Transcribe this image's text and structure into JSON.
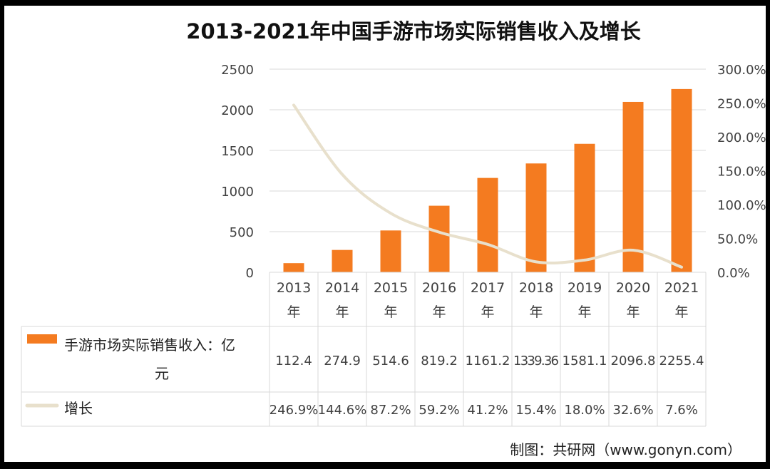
{
  "chart_data": {
    "type": "bar",
    "title": "2013-2021年中国手游市场实际销售收入及增长",
    "categories": [
      "2013年",
      "2014年",
      "2015年",
      "2016年",
      "2017年",
      "2018年",
      "2019年",
      "2020年",
      "2021年"
    ],
    "category_lines": [
      [
        "2013",
        "年"
      ],
      [
        "2014",
        "年"
      ],
      [
        "2015",
        "年"
      ],
      [
        "2016",
        "年"
      ],
      [
        "2017",
        "年"
      ],
      [
        "2018",
        "年"
      ],
      [
        "2019",
        "年"
      ],
      [
        "2020",
        "年"
      ],
      [
        "2021",
        "年"
      ]
    ],
    "series": [
      {
        "name": "手游市场实际销售收入：亿元",
        "name_lines": [
          "手游市场实际销售收入：亿",
          "元"
        ],
        "type": "bar",
        "axis": "left",
        "color": "#F47B20",
        "values": [
          112.4,
          274.9,
          514.6,
          819.2,
          1161.2,
          1339.36,
          1581.1,
          2096.8,
          2255.4
        ],
        "labels": [
          "112.4",
          "274.9",
          "514.6",
          "819.2",
          "1161.2",
          "1339.36",
          "1581.1",
          "2096.8",
          "2255.4"
        ]
      },
      {
        "name": "增长",
        "type": "line",
        "axis": "right",
        "color": "#E8E0CC",
        "values": [
          246.9,
          144.6,
          87.2,
          59.2,
          41.2,
          15.4,
          18.0,
          32.6,
          7.6
        ],
        "labels": [
          "246.9%",
          "144.6%",
          "87.2%",
          "59.2%",
          "41.2%",
          "15.4%",
          "18.0%",
          "32.6%",
          "7.6%"
        ]
      }
    ],
    "y_left": {
      "range": [
        0,
        2500
      ],
      "ticks": [
        0,
        500,
        1000,
        1500,
        2000,
        2500
      ],
      "tick_labels": [
        "0",
        "500",
        "1000",
        "1500",
        "2000",
        "2500"
      ]
    },
    "y_right": {
      "range": [
        0,
        300
      ],
      "ticks": [
        0,
        50,
        100,
        150,
        200,
        250,
        300
      ],
      "tick_labels": [
        "0.0%",
        "50.0%",
        "100.0%",
        "150.0%",
        "200.0%",
        "250.0%",
        "300.0%"
      ]
    },
    "grid": true,
    "legend": "data table below chart"
  },
  "source_credit": "制图：共研网（www.gonyn.com）",
  "colors": {
    "frame": "#000000",
    "background": "#ffffff",
    "grid": "#D9D9D9",
    "text": "#404040"
  }
}
